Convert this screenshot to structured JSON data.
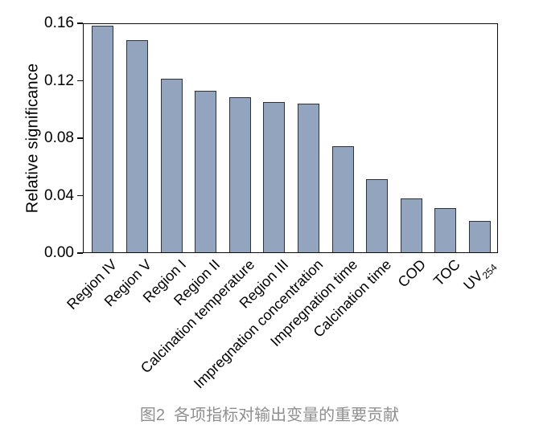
{
  "figure": {
    "caption": "图2  各项指标对输出变量的重要贡献"
  },
  "chart_data": {
    "type": "bar",
    "title": "",
    "xlabel": "",
    "ylabel": "Relative significance",
    "categories": [
      "Region IV",
      "Region V",
      "Region I",
      "Region II",
      "Calcination temperature",
      "Region III",
      "Impregnation concentration",
      "Impregnation time",
      "Calcination time",
      "COD",
      "TOC",
      "UV254"
    ],
    "xtick_labels": [
      "Region IV",
      "Region V",
      "Region I",
      "Region II",
      "Calcination temperature",
      "Region III",
      "Impregnation concentration",
      "Impregnation time",
      "Calcination time",
      "COD",
      "TOC",
      "UV_{254}"
    ],
    "values": [
      0.158,
      0.148,
      0.121,
      0.113,
      0.108,
      0.105,
      0.104,
      0.074,
      0.051,
      0.038,
      0.031,
      0.022
    ],
    "ylim": [
      0.0,
      0.16
    ],
    "yticks": [
      0.0,
      0.04,
      0.08,
      0.12,
      0.16
    ],
    "ytick_labels": [
      "0.00",
      "0.04",
      "0.08",
      "0.12",
      "0.16"
    ],
    "grid": false,
    "legend": "none",
    "xtick_rotation_deg": 45,
    "bar_color": "#93a5be",
    "bar_edge_color": "#2a3340",
    "axis_color": "#0c0c0c",
    "caption_color": "#8f8f8f"
  }
}
